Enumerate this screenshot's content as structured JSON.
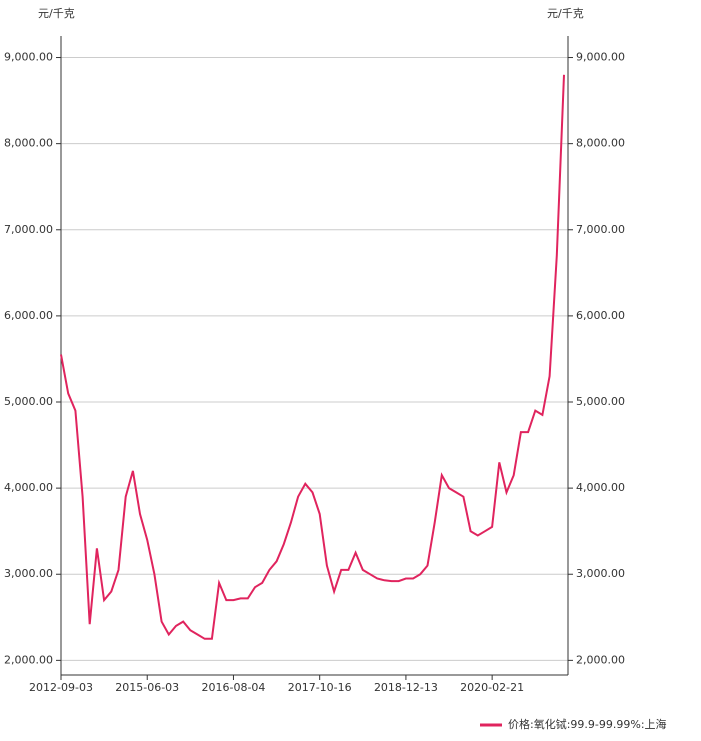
{
  "chart_data": {
    "type": "line",
    "y_label": "元/千克",
    "y2_label": "元/千克",
    "categories": [
      "2012-09-03",
      null,
      null,
      null,
      null,
      null,
      null,
      null,
      null,
      null,
      null,
      null,
      "2015-06-03",
      null,
      null,
      null,
      null,
      null,
      null,
      null,
      null,
      null,
      null,
      null,
      "2016-08-04",
      null,
      null,
      null,
      null,
      null,
      null,
      null,
      null,
      null,
      null,
      null,
      "2017-10-16",
      null,
      null,
      null,
      null,
      null,
      null,
      null,
      null,
      null,
      null,
      null,
      "2018-12-13",
      null,
      null,
      null,
      null,
      null,
      null,
      null,
      null,
      null,
      null,
      null,
      "2020-02-21",
      null,
      null,
      null,
      null,
      null,
      null,
      null,
      null,
      null,
      null
    ],
    "series": [
      {
        "name": "价格:氧化铽:99.9-99.99%:上海",
        "color": "#e0245e",
        "values": [
          5550,
          5100,
          4900,
          3900,
          2420,
          3300,
          2700,
          2800,
          3050,
          3900,
          4200,
          3700,
          3400,
          3000,
          2450,
          2300,
          2400,
          2450,
          2350,
          2300,
          2250,
          2250,
          2900,
          2700,
          2700,
          2720,
          2720,
          2850,
          2900,
          3050,
          3150,
          3350,
          3600,
          3900,
          4050,
          3950,
          3700,
          3100,
          2800,
          3050,
          3050,
          3250,
          3050,
          3000,
          2950,
          2930,
          2920,
          2920,
          2950,
          2950,
          3000,
          3100,
          3600,
          4150,
          4000,
          3950,
          3900,
          3500,
          3450,
          3500,
          3550,
          4300,
          3950,
          4150,
          4650,
          4650,
          4900,
          4850,
          5300,
          6700,
          8800
        ]
      }
    ],
    "ylim": [
      1830,
      9250
    ],
    "yticks": [
      {
        "value": 2000,
        "label": "2,000.00"
      },
      {
        "value": 3000,
        "label": "3,000.00"
      },
      {
        "value": 4000,
        "label": "4,000.00"
      },
      {
        "value": 5000,
        "label": "5,000.00"
      },
      {
        "value": 6000,
        "label": "6,000.00"
      },
      {
        "value": 7000,
        "label": "7,000.00"
      },
      {
        "value": 8000,
        "label": "8,000.00"
      },
      {
        "value": 9000,
        "label": "9,000.00"
      }
    ],
    "y2lim": [
      1830,
      9250
    ],
    "y2ticks": [
      {
        "value": 2000,
        "label": "2,000.00"
      },
      {
        "value": 3000,
        "label": "3,000.00"
      },
      {
        "value": 4000,
        "label": "4,000.00"
      },
      {
        "value": 5000,
        "label": "5,000.00"
      },
      {
        "value": 6000,
        "label": "6,000.00"
      },
      {
        "value": 7000,
        "label": "7,000.00"
      },
      {
        "value": 8000,
        "label": "8,000.00"
      },
      {
        "value": 9000,
        "label": "9,000.00"
      }
    ],
    "grid": true
  }
}
